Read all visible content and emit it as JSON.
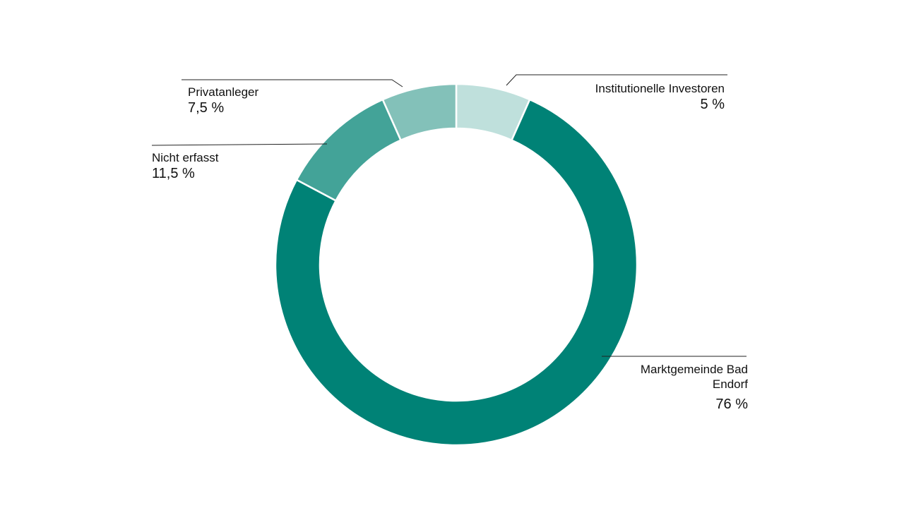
{
  "chart_data": {
    "type": "pie",
    "variant": "donut",
    "title": "",
    "categories": [
      "Institutionelle Investoren",
      "Marktgemeinde Bad Endorf",
      "Nicht erfasst",
      "Privatanleger"
    ],
    "values": [
      5,
      76,
      11.5,
      7.5
    ],
    "unit": "%",
    "value_labels": [
      "5 %",
      "76 %",
      "11,5 %",
      "7,5 %"
    ],
    "colors": [
      "#bfe0dc",
      "#008276",
      "#43a398",
      "#83c1b9"
    ],
    "legend": "none (callout labels)",
    "start_angle_deg": 0,
    "direction": "clockwise"
  },
  "labels": {
    "institutionelle": {
      "name": "Institutionelle Investoren",
      "value": "5 %"
    },
    "markt_line1": "Marktgemeinde Bad",
    "markt_line2": "Endorf",
    "markt_value": "76 %",
    "nicht": {
      "name": "Nicht erfasst",
      "value": "11,5 %"
    },
    "privat": {
      "name": "Privatanleger",
      "value": "7,5 %"
    }
  }
}
